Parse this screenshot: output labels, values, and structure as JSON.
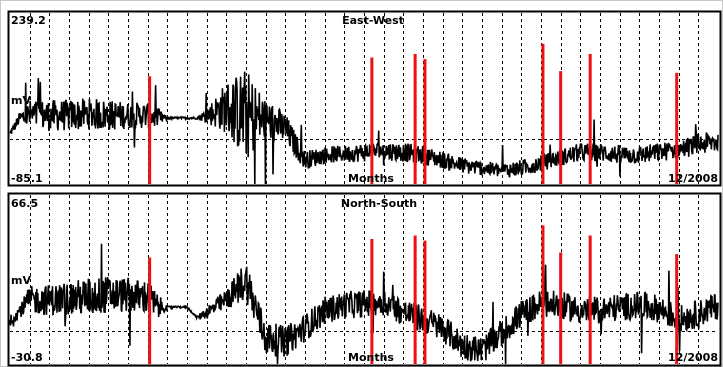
{
  "colors": {
    "signal": "#000000",
    "event_marker": "#ee1111",
    "grid": "#000000",
    "frame": "#000000",
    "background": "#ffffff"
  },
  "chart_data": [
    {
      "type": "line",
      "title": "East-West",
      "ylabel": "mV",
      "xlabel": "Months",
      "x_end_label": "12/2008",
      "ylim": [
        -85.1,
        239.2
      ],
      "y_max_label": "239.2",
      "y_min_label": "-85.1",
      "reference_line": 0,
      "grid": true,
      "x_gridlines": 36,
      "series": [
        {
          "x": [
            0,
            0.5,
            1,
            2,
            3,
            4,
            5,
            6,
            6.5,
            7,
            7.5,
            8,
            8.5,
            9,
            9.5,
            10,
            11,
            12,
            13,
            14,
            15,
            16,
            17,
            18,
            19,
            20,
            21,
            22,
            23,
            24,
            25,
            26,
            27,
            28,
            29,
            30,
            31,
            32,
            33,
            34,
            35,
            36
          ],
          "y": [
            10,
            40,
            45,
            45,
            45,
            48,
            45,
            45,
            45,
            45,
            40,
            40,
            40,
            40,
            40,
            45,
            60,
            45,
            38,
            20,
            -40,
            -30,
            -28,
            -25,
            -22,
            -25,
            -30,
            -40,
            -50,
            -55,
            -60,
            -55,
            -45,
            -35,
            -25,
            -25,
            -30,
            -30,
            -25,
            -20,
            -10,
            -5
          ],
          "noise": [
            6,
            12,
            30,
            30,
            30,
            30,
            30,
            25,
            25,
            25,
            20,
            2,
            2,
            2,
            2,
            15,
            50,
            90,
            40,
            30,
            18,
            16,
            16,
            18,
            18,
            18,
            18,
            16,
            16,
            14,
            14,
            16,
            16,
            16,
            18,
            18,
            18,
            18,
            18,
            18,
            20,
            22
          ]
        }
      ]
    },
    {
      "type": "line",
      "title": "North-South",
      "ylabel": "mV",
      "xlabel": "Months",
      "x_end_label": "12/2008",
      "ylim": [
        -30.8,
        66.5
      ],
      "y_max_label": "66.5",
      "y_min_label": "-30.8",
      "reference_line": -12,
      "grid": true,
      "x_gridlines": 36,
      "series": [
        {
          "x": [
            0,
            0.5,
            1,
            2,
            3,
            4,
            5,
            6,
            6.5,
            7,
            7.5,
            8,
            8.5,
            9,
            9.5,
            10,
            11,
            12,
            13,
            14,
            15,
            16,
            17,
            18,
            19,
            20,
            21,
            22,
            23,
            24,
            25,
            26,
            27,
            28,
            29,
            30,
            31,
            32,
            33,
            34,
            35,
            36
          ],
          "y": [
            -6,
            0,
            6,
            6,
            7,
            8,
            9,
            9,
            8,
            8,
            2,
            2,
            2,
            2,
            -4,
            -1,
            6,
            18,
            -16,
            -18,
            -10,
            0,
            3,
            4,
            5,
            -1,
            -5,
            -10,
            -20,
            -23,
            -13,
            -2,
            4,
            3,
            0,
            0,
            2,
            3,
            1,
            -5,
            -2,
            3
          ],
          "noise": [
            3,
            4,
            8,
            9,
            10,
            11,
            11,
            10,
            10,
            10,
            8,
            0.5,
            0.5,
            0.5,
            0.5,
            4,
            6,
            12,
            10,
            9,
            8,
            8,
            8,
            8,
            8,
            8,
            8,
            8,
            8,
            8,
            8,
            8,
            8,
            8,
            8,
            8,
            8,
            8,
            8,
            8,
            8,
            8
          ]
        }
      ]
    }
  ],
  "event_markers": [
    {
      "x": 7.1,
      "top_fraction": 0.63
    },
    {
      "x": 18.4,
      "top_fraction": 0.74
    },
    {
      "x": 20.6,
      "top_fraction": 0.76
    },
    {
      "x": 21.1,
      "top_fraction": 0.73
    },
    {
      "x": 27.1,
      "top_fraction": 0.82
    },
    {
      "x": 28.0,
      "top_fraction": 0.66
    },
    {
      "x": 29.5,
      "top_fraction": 0.76
    },
    {
      "x": 33.9,
      "top_fraction": 0.65
    }
  ]
}
